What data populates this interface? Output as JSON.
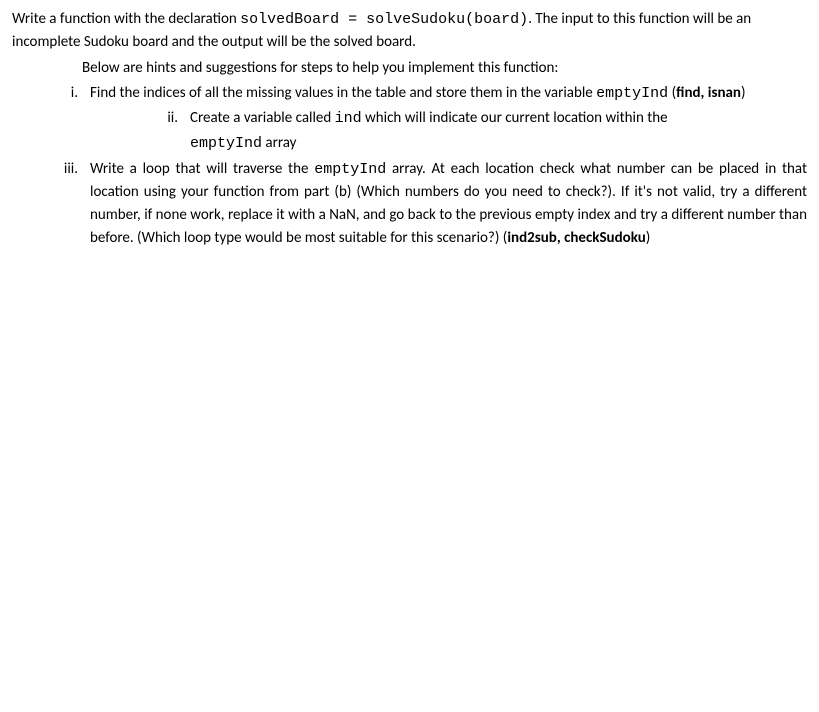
{
  "intro": {
    "part1": "Write a function with the declaration ",
    "code1": "solvedBoard = solveSudoku(board)",
    "part2": ". The input to this function will be an incomplete Sudoku board and the output will be the solved board."
  },
  "hints_line": "Below are hints and suggestions for steps to help you implement this function:",
  "items": {
    "i": {
      "num": "i.",
      "text1": "Find the indices of all the missing values in the table and store them in the variable ",
      "code1": "emptyInd",
      "text2": "  (",
      "bold1": "find, isnan",
      "text3": ")"
    },
    "ii": {
      "num": "ii.",
      "text1": "Create a variable called ",
      "code1": "ind",
      "text2": " which will indicate our current location within the",
      "cont_code": "emptyInd",
      "cont_text": " array"
    },
    "iii": {
      "num": "iii.",
      "text1": "Write a loop that will traverse the ",
      "code1": "emptyInd",
      "text2": " array. At each location check what number can be placed in that location using your function from part (b) (Which numbers do you need to check?).  If it's not valid, try a different number, if none work, replace it with a NaN, and go back to the previous empty index  and try a different number than before.  (Which  loop  type  would  be  most  suitable  for  this  scenario?)  (",
      "bold1": "ind2sub, checkSudoku",
      "text3": ")"
    }
  }
}
